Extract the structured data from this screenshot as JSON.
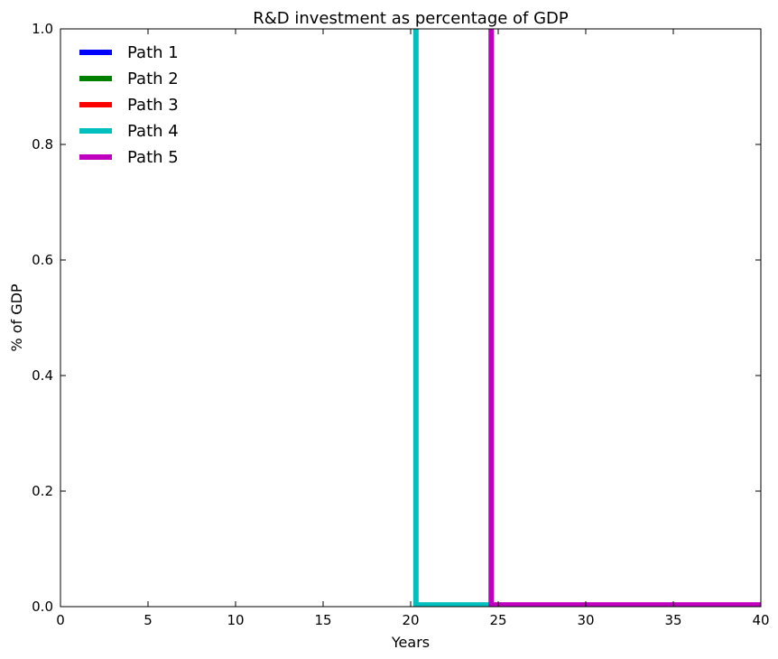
{
  "chart_data": {
    "type": "line",
    "title": "R&D investment as percentage of  GDP",
    "xlabel": "Years",
    "ylabel": "% of GDP",
    "xlim": [
      0,
      40
    ],
    "ylim": [
      0.0,
      1.0
    ],
    "xticks": [
      "0",
      "5",
      "10",
      "15",
      "20",
      "25",
      "30",
      "35",
      "40"
    ],
    "yticks": [
      "0.0",
      "0.2",
      "0.4",
      "0.6",
      "0.8",
      "1.0"
    ],
    "grid": false,
    "legend_position": "top-left",
    "series": [
      {
        "name": "Path 1",
        "color": "#0000ff",
        "x": [],
        "y": []
      },
      {
        "name": "Path 2",
        "color": "#008000",
        "x": [],
        "y": []
      },
      {
        "name": "Path 3",
        "color": "#ff0000",
        "x": [],
        "y": []
      },
      {
        "name": "Path 4",
        "color": "#00bfbf",
        "x": [
          20.3,
          20.3,
          24.6
        ],
        "y": [
          1.0,
          0.003,
          0.003
        ]
      },
      {
        "name": "Path 5",
        "color": "#bf00bf",
        "x": [
          24.6,
          24.6,
          40.0
        ],
        "y": [
          1.0,
          0.003,
          0.003
        ]
      }
    ]
  }
}
